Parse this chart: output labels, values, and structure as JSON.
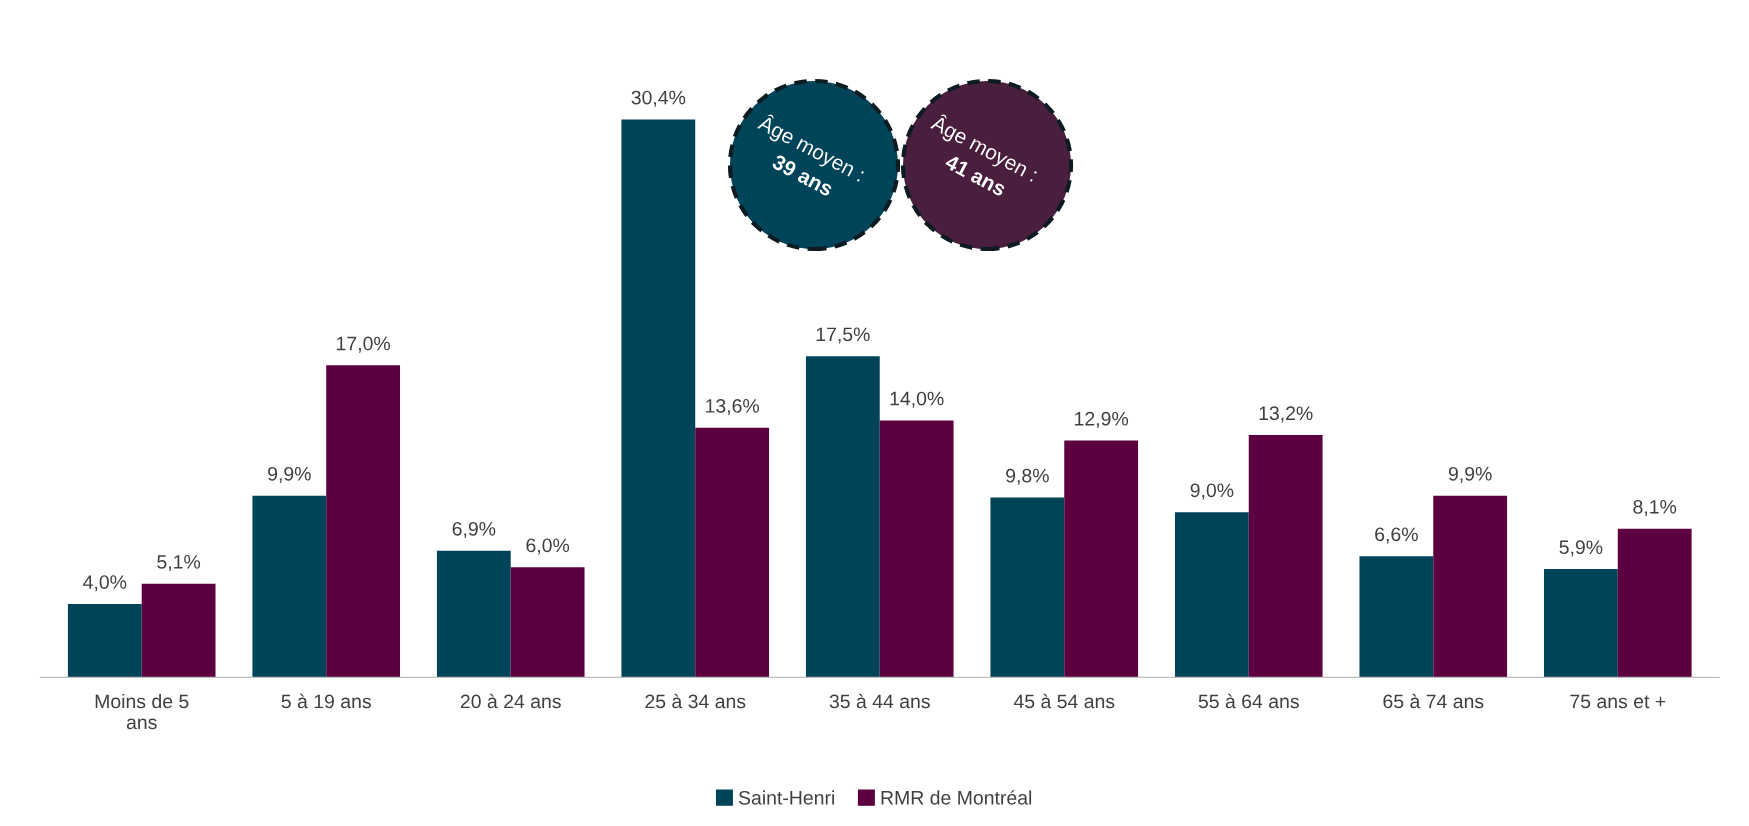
{
  "chart_data": {
    "type": "bar",
    "categories": [
      "Moins de 5 ans",
      "5 à 19 ans",
      "20 à 24 ans",
      "25 à 34 ans",
      "35 à 44 ans",
      "45 à 54 ans",
      "55 à 64 ans",
      "65 à 74 ans",
      "75 ans et +"
    ],
    "series": [
      {
        "name": "Saint-Henri",
        "color": "#00445a",
        "values": [
          4.0,
          9.9,
          6.9,
          30.4,
          17.5,
          9.8,
          9.0,
          6.6,
          5.9
        ],
        "value_labels": [
          "4,0%",
          "9,9%",
          "6,9%",
          "30,4%",
          "17,5%",
          "9,8%",
          "9,0%",
          "6,6%",
          "5,9%"
        ]
      },
      {
        "name": "RMR de Montréal",
        "color": "#5c0040",
        "values": [
          5.1,
          17.0,
          6.0,
          13.6,
          14.0,
          12.9,
          13.2,
          9.9,
          8.1
        ],
        "value_labels": [
          "5,1%",
          "17,0%",
          "6,0%",
          "13,6%",
          "14,0%",
          "12,9%",
          "13,2%",
          "9,9%",
          "8,1%"
        ]
      }
    ],
    "legend": "bottom",
    "annotations": [
      "Âge moyen :\n39 ans",
      "Âge moyen :\n41 ans"
    ]
  }
}
